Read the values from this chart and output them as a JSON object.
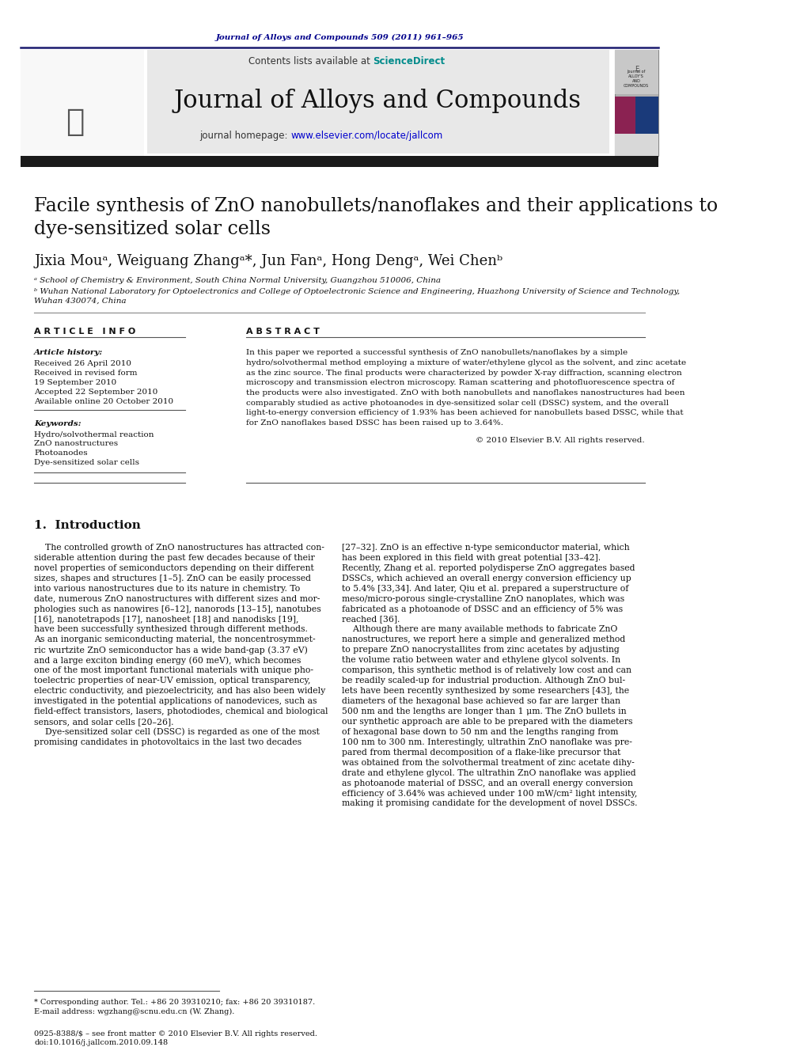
{
  "page_bg": "#ffffff",
  "header_journal_text": "Journal of Alloys and Compounds 509 (2011) 961–965",
  "header_journal_color": "#00008B",
  "contents_text": "Contents lists available at",
  "sciencedirect_text": "ScienceDirect",
  "sciencedirect_color": "#008B8B",
  "journal_title": "Journal of Alloys and Compounds",
  "journal_homepage_prefix": "journal homepage: ",
  "journal_homepage_url": "www.elsevier.com/locate/jallcom",
  "journal_homepage_color": "#0000CD",
  "header_bg": "#e8e8e8",
  "divider_color": "#1a1a6e",
  "paper_title": "Facile synthesis of ZnO nanobullets/nanoflakes and their applications to\ndye-sensitized solar cells",
  "authors": "Jixia Mouᵃ, Weiguang Zhangᵃ*, Jun Fanᵃ, Hong Dengᵃ, Wei Chenᵇ",
  "affil_a": "ᵃ School of Chemistry & Environment, South China Normal University, Guangzhou 510006, China",
  "affil_b": "ᵇ Wuhan National Laboratory for Optoelectronics and College of Optoelectronic Science and Engineering, Huazhong University of Science and Technology,\nWuhan 430074, China",
  "article_info_header": "A R T I C L E   I N F O",
  "abstract_header": "A B S T R A C T",
  "article_history_label": "Article history:",
  "received": "Received 26 April 2010",
  "received_revised": "Received in revised form",
  "received_revised2": "19 September 2010",
  "accepted": "Accepted 22 September 2010",
  "available": "Available online 20 October 2010",
  "keywords_label": "Keywords:",
  "keyword1": "Hydro/solvothermal reaction",
  "keyword2": "ZnO nanostructures",
  "keyword3": "Photoanodes",
  "keyword4": "Dye-sensitized solar cells",
  "abstract_lines": [
    "In this paper we reported a successful synthesis of ZnO nanobullets/nanoflakes by a simple",
    "hydro/solvothermal method employing a mixture of water/ethylene glycol as the solvent, and zinc acetate",
    "as the zinc source. The final products were characterized by powder X-ray diffraction, scanning electron",
    "microscopy and transmission electron microscopy. Raman scattering and photofluorescence spectra of",
    "the products were also investigated. ZnO with both nanobullets and nanoflakes nanostructures had been",
    "comparably studied as active photoanodes in dye-sensitized solar cell (DSSC) system, and the overall",
    "light-to-energy conversion efficiency of 1.93% has been achieved for nanobullets based DSSC, while that",
    "for ZnO nanoflakes based DSSC has been raised up to 3.64%."
  ],
  "copyright_text": "© 2010 Elsevier B.V. All rights reserved.",
  "section1_header": "1.  Introduction",
  "left_col_lines": [
    "    The controlled growth of ZnO nanostructures has attracted con-",
    "siderable attention during the past few decades because of their",
    "novel properties of semiconductors depending on their different",
    "sizes, shapes and structures [1–5]. ZnO can be easily processed",
    "into various nanostructures due to its nature in chemistry. To",
    "date, numerous ZnO nanostructures with different sizes and mor-",
    "phologies such as nanowires [6–12], nanorods [13–15], nanotubes",
    "[16], nanotetrapods [17], nanosheet [18] and nanodisks [19],",
    "have been successfully synthesized through different methods.",
    "As an inorganic semiconducting material, the noncentrosymmet-",
    "ric wurtzite ZnO semiconductor has a wide band-gap (3.37 eV)",
    "and a large exciton binding energy (60 meV), which becomes",
    "one of the most important functional materials with unique pho-",
    "toelectric properties of near-UV emission, optical transparency,",
    "electric conductivity, and piezoelectricity, and has also been widely",
    "investigated in the potential applications of nanodevices, such as",
    "field-effect transistors, lasers, photodiodes, chemical and biological",
    "sensors, and solar cells [20–26].",
    "    Dye-sensitized solar cell (DSSC) is regarded as one of the most",
    "promising candidates in photovoltaics in the last two decades"
  ],
  "right_col_lines": [
    "[27–32]. ZnO is an effective n-type semiconductor material, which",
    "has been explored in this field with great potential [33–42].",
    "Recently, Zhang et al. reported polydisperse ZnO aggregates based",
    "DSSCs, which achieved an overall energy conversion efficiency up",
    "to 5.4% [33,34]. And later, Qiu et al. prepared a superstructure of",
    "meso/micro-porous single-crystalline ZnO nanoplates, which was",
    "fabricated as a photoanode of DSSC and an efficiency of 5% was",
    "reached [36].",
    "    Although there are many available methods to fabricate ZnO",
    "nanostructures, we report here a simple and generalized method",
    "to prepare ZnO nanocrystallites from zinc acetates by adjusting",
    "the volume ratio between water and ethylene glycol solvents. In",
    "comparison, this synthetic method is of relatively low cost and can",
    "be readily scaled-up for industrial production. Although ZnO bul-",
    "lets have been recently synthesized by some researchers [43], the",
    "diameters of the hexagonal base achieved so far are larger than",
    "500 nm and the lengths are longer than 1 μm. The ZnO bullets in",
    "our synthetic approach are able to be prepared with the diameters",
    "of hexagonal base down to 50 nm and the lengths ranging from",
    "100 nm to 300 nm. Interestingly, ultrathin ZnO nanoflake was pre-",
    "pared from thermal decomposition of a flake-like precursor that",
    "was obtained from the solvothermal treatment of zinc acetate dihy-",
    "drate and ethylene glycol. The ultrathin ZnO nanoflake was applied",
    "as photoanode material of DSSC, and an overall energy conversion",
    "efficiency of 3.64% was achieved under 100 mW/cm² light intensity,",
    "making it promising candidate for the development of novel DSSCs."
  ],
  "footnote_star": "* Corresponding author. Tel.: +86 20 39310210; fax: +86 20 39310187.",
  "footnote_email": "E-mail address: wgzhang@scnu.edu.cn (W. Zhang).",
  "footer_line1": "0925-8388/$ – see front matter © 2010 Elsevier B.V. All rights reserved.",
  "footer_line2": "doi:10.1016/j.jallcom.2010.09.148"
}
